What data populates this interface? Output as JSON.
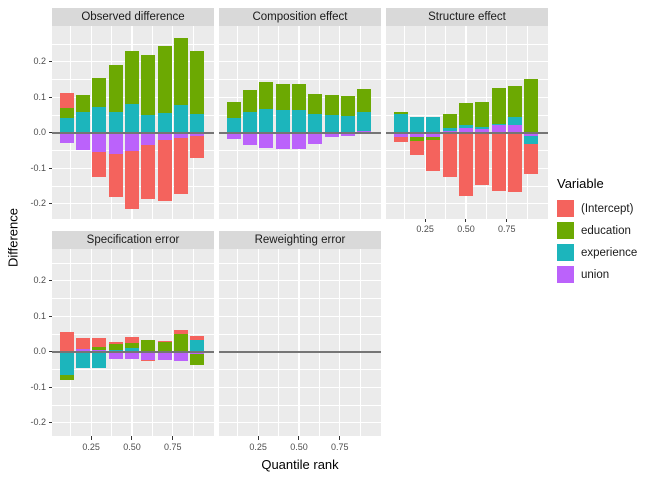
{
  "figure": {
    "y_axis_title": "Difference",
    "x_axis_title": "Quantile rank",
    "y_ticks": [
      "0.2",
      "0.1",
      "0.0",
      "-0.1",
      "-0.2"
    ],
    "x_ticks": [
      "0.25",
      "0.50",
      "0.75"
    ]
  },
  "colors": {
    "intercept": "#F4635D",
    "education": "#6CA902",
    "experience": "#1CB5BC",
    "union": "#BB62FB",
    "panel_bg": "#EBEBEB",
    "strip_bg": "#D9D9D9",
    "grid": "#FFFFFF",
    "zero_line": "#757575",
    "tick_text": "#4D4D4D",
    "text": "#1A1A1A"
  },
  "legend": {
    "title": "Variable",
    "items": [
      {
        "label": "(Intercept)",
        "key": "intercept"
      },
      {
        "label": "education",
        "key": "education"
      },
      {
        "label": "experience",
        "key": "experience"
      },
      {
        "label": "union",
        "key": "union"
      }
    ]
  },
  "chart_data": {
    "type": "bar",
    "stacked": true,
    "title": "",
    "xlabel": "Quantile rank",
    "ylabel": "Difference",
    "ylim": [
      -0.24,
      0.3
    ],
    "x_tick_values": [
      0.25,
      0.5,
      0.75
    ],
    "y_tick_values": [
      0.2,
      0.1,
      0.0,
      -0.1,
      -0.2
    ],
    "grid": true,
    "legend_position": "right",
    "series_keys": [
      "intercept",
      "education",
      "experience",
      "union"
    ],
    "stack_order_from_zero": [
      "union",
      "experience",
      "education",
      "intercept"
    ],
    "quantiles": [
      0.1,
      0.2,
      0.3,
      0.4,
      0.5,
      0.6,
      0.7,
      0.8,
      0.9
    ],
    "panels": [
      {
        "title": "Observed difference",
        "bars": [
          {
            "q": 0.1,
            "intercept": 0.042,
            "education": 0.027,
            "experience": 0.042,
            "union": -0.029
          },
          {
            "q": 0.2,
            "intercept": 0.0,
            "education": 0.048,
            "experience": 0.059,
            "union": -0.049
          },
          {
            "q": 0.3,
            "intercept": -0.07,
            "education": 0.081,
            "experience": 0.072,
            "union": -0.054
          },
          {
            "q": 0.4,
            "intercept": -0.122,
            "education": 0.131,
            "experience": 0.059,
            "union": -0.059
          },
          {
            "q": 0.5,
            "intercept": -0.164,
            "education": 0.15,
            "experience": 0.08,
            "union": -0.052
          },
          {
            "q": 0.6,
            "intercept": -0.153,
            "education": 0.17,
            "experience": 0.049,
            "union": -0.035
          },
          {
            "q": 0.7,
            "intercept": -0.171,
            "education": 0.188,
            "experience": 0.056,
            "union": -0.021
          },
          {
            "q": 0.8,
            "intercept": -0.156,
            "education": 0.189,
            "experience": 0.077,
            "union": -0.016
          },
          {
            "q": 0.9,
            "intercept": -0.061,
            "education": 0.176,
            "experience": 0.054,
            "union": -0.009
          }
        ]
      },
      {
        "title": "Composition effect",
        "bars": [
          {
            "q": 0.1,
            "intercept": 0.0,
            "education": 0.044,
            "experience": 0.042,
            "union": -0.019
          },
          {
            "q": 0.2,
            "intercept": 0.0,
            "education": 0.062,
            "experience": 0.058,
            "union": -0.035
          },
          {
            "q": 0.3,
            "intercept": 0.0,
            "education": 0.074,
            "experience": 0.068,
            "union": -0.042
          },
          {
            "q": 0.4,
            "intercept": 0.0,
            "education": 0.072,
            "experience": 0.065,
            "union": -0.045
          },
          {
            "q": 0.5,
            "intercept": 0.0,
            "education": 0.073,
            "experience": 0.064,
            "union": -0.045
          },
          {
            "q": 0.6,
            "intercept": 0.0,
            "education": 0.055,
            "experience": 0.054,
            "union": -0.031
          },
          {
            "q": 0.7,
            "intercept": 0.0,
            "education": 0.056,
            "experience": 0.051,
            "union": -0.012
          },
          {
            "q": 0.8,
            "intercept": 0.0,
            "education": 0.055,
            "experience": 0.047,
            "union": -0.008
          },
          {
            "q": 0.9,
            "intercept": 0.0,
            "education": 0.065,
            "experience": 0.053,
            "union": 0.005
          }
        ]
      },
      {
        "title": "Structure effect",
        "bars": [
          {
            "q": 0.1,
            "intercept": -0.013,
            "education": 0.006,
            "experience": 0.053,
            "union": -0.012
          },
          {
            "q": 0.2,
            "intercept": -0.039,
            "education": -0.01,
            "experience": 0.045,
            "union": -0.013
          },
          {
            "q": 0.3,
            "intercept": -0.087,
            "education": -0.008,
            "experience": 0.045,
            "union": -0.012
          },
          {
            "q": 0.4,
            "intercept": -0.125,
            "education": 0.039,
            "experience": 0.01,
            "union": 0.004
          },
          {
            "q": 0.5,
            "intercept": -0.177,
            "education": 0.062,
            "experience": 0.009,
            "union": 0.012
          },
          {
            "q": 0.6,
            "intercept": -0.147,
            "education": 0.07,
            "experience": 0.007,
            "union": 0.01
          },
          {
            "q": 0.7,
            "intercept": -0.163,
            "education": 0.1,
            "experience": 0.004,
            "union": 0.021
          },
          {
            "q": 0.8,
            "intercept": -0.168,
            "education": 0.086,
            "experience": 0.024,
            "union": 0.021
          },
          {
            "q": 0.9,
            "intercept": -0.082,
            "education": 0.15,
            "experience": -0.023,
            "union": -0.01
          }
        ]
      },
      {
        "title": "Specification error",
        "bars": [
          {
            "q": 0.1,
            "intercept": 0.055,
            "education": -0.015,
            "experience": -0.065,
            "union": 0.0
          },
          {
            "q": 0.2,
            "intercept": 0.032,
            "education": 0.0,
            "experience": -0.045,
            "union": 0.008
          },
          {
            "q": 0.3,
            "intercept": 0.026,
            "education": 0.009,
            "experience": -0.045,
            "union": 0.005
          },
          {
            "q": 0.4,
            "intercept": 0.006,
            "education": 0.018,
            "experience": 0.004,
            "union": -0.02
          },
          {
            "q": 0.5,
            "intercept": 0.017,
            "education": 0.014,
            "experience": 0.011,
            "union": -0.02
          },
          {
            "q": 0.6,
            "intercept": -0.003,
            "education": 0.03,
            "experience": 0.003,
            "union": -0.022
          },
          {
            "q": 0.7,
            "intercept": 0.003,
            "education": 0.027,
            "experience": 0.0,
            "union": -0.024
          },
          {
            "q": 0.8,
            "intercept": 0.012,
            "education": 0.05,
            "experience": 0.0,
            "union": -0.025
          },
          {
            "q": 0.9,
            "intercept": 0.011,
            "education": -0.029,
            "experience": 0.033,
            "union": -0.007
          }
        ]
      },
      {
        "title": "Reweighting error",
        "bars": [
          {
            "q": 0.1,
            "intercept": 0.0,
            "education": 0.0,
            "experience": 0.0,
            "union": 0.0
          },
          {
            "q": 0.2,
            "intercept": 0.0,
            "education": 0.0,
            "experience": 0.0,
            "union": 0.0
          },
          {
            "q": 0.3,
            "intercept": 0.0,
            "education": 0.0,
            "experience": 0.0,
            "union": 0.0
          },
          {
            "q": 0.4,
            "intercept": 0.0,
            "education": 0.0,
            "experience": 0.0,
            "union": 0.0
          },
          {
            "q": 0.5,
            "intercept": 0.0,
            "education": 0.0,
            "experience": 0.0,
            "union": 0.0
          },
          {
            "q": 0.6,
            "intercept": 0.0,
            "education": 0.0,
            "experience": 0.0,
            "union": 0.0
          },
          {
            "q": 0.7,
            "intercept": 0.0,
            "education": 0.0,
            "experience": 0.0,
            "union": 0.0
          },
          {
            "q": 0.8,
            "intercept": 0.0,
            "education": 0.0,
            "experience": 0.0,
            "union": 0.0
          },
          {
            "q": 0.9,
            "intercept": 0.0,
            "education": 0.0,
            "experience": 0.0,
            "union": 0.0
          }
        ]
      }
    ]
  }
}
